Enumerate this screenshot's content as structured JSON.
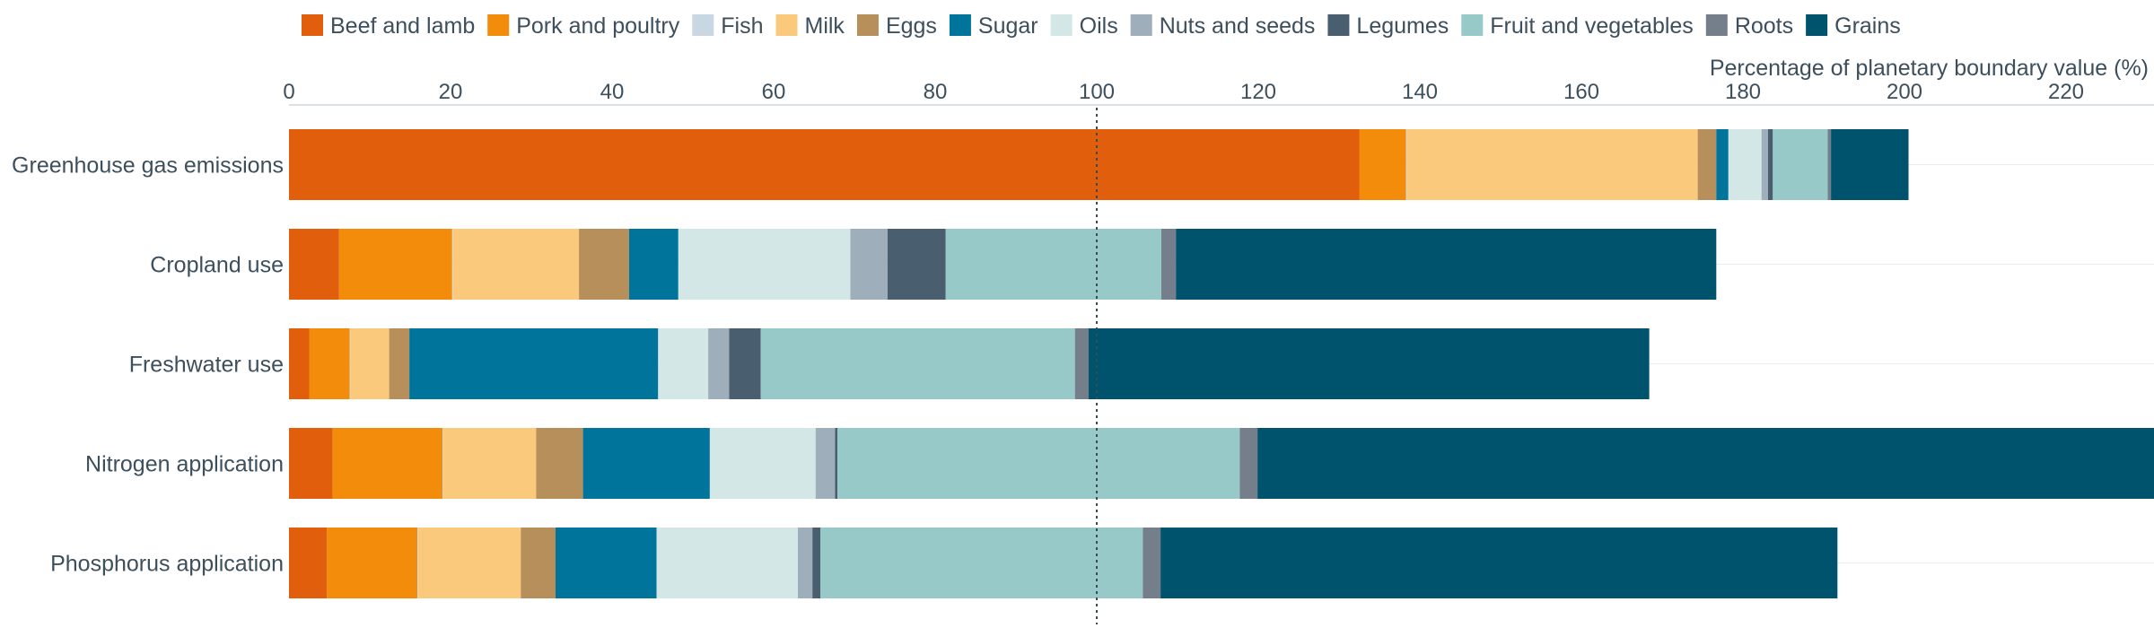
{
  "chart_data": {
    "type": "bar",
    "orientation": "horizontal",
    "stacked": true,
    "xlabel": "Percentage of planetary boundary value (%)",
    "xlim": [
      0,
      231
    ],
    "x_ticks": [
      0,
      20,
      40,
      60,
      80,
      100,
      120,
      140,
      160,
      180,
      200,
      220
    ],
    "x_axis_position": "top",
    "reference_line": {
      "value": 100,
      "style": "dotted"
    },
    "grid": false,
    "legend_position": "top",
    "categories": [
      "Greenhouse gas emissions",
      "Cropland use",
      "Freshwater use",
      "Nitrogen application",
      "Phosphorus application"
    ],
    "series": [
      {
        "name": "Beef and lamb",
        "color": "#e05e0c",
        "values": [
          132.5,
          6.2,
          2.5,
          5.4,
          4.7
        ]
      },
      {
        "name": "Pork and poultry",
        "color": "#f28c0a",
        "values": [
          5.8,
          14.0,
          5.0,
          13.6,
          11.2
        ]
      },
      {
        "name": "Fish",
        "color": "#c9d7e3",
        "values": [
          0.1,
          0.1,
          0.1,
          0.1,
          0.1
        ]
      },
      {
        "name": "Milk",
        "color": "#fbc97c",
        "values": [
          36.0,
          15.6,
          4.8,
          11.5,
          12.7
        ]
      },
      {
        "name": "Eggs",
        "color": "#b68f5b",
        "values": [
          2.3,
          6.2,
          2.5,
          5.8,
          4.3
        ]
      },
      {
        "name": "Sugar",
        "color": "#00749a",
        "values": [
          1.5,
          6.1,
          30.8,
          15.7,
          12.5
        ]
      },
      {
        "name": "Oils",
        "color": "#d2e7e6",
        "values": [
          4.1,
          21.3,
          6.2,
          13.1,
          17.5
        ]
      },
      {
        "name": "Nuts and seeds",
        "color": "#9eaebb",
        "values": [
          0.8,
          4.6,
          2.6,
          2.4,
          1.8
        ]
      },
      {
        "name": "Legumes",
        "color": "#495e6e",
        "values": [
          0.6,
          7.2,
          3.9,
          0.3,
          1.0
        ]
      },
      {
        "name": "Fruit and vegetables",
        "color": "#96c9c8",
        "values": [
          6.8,
          26.7,
          38.9,
          49.8,
          39.9
        ]
      },
      {
        "name": "Roots",
        "color": "#757f8c",
        "values": [
          0.4,
          1.8,
          1.7,
          2.2,
          2.2
        ]
      },
      {
        "name": "Grains",
        "color": "#00536d",
        "values": [
          9.6,
          66.9,
          69.4,
          111.1,
          83.8
        ]
      }
    ]
  }
}
